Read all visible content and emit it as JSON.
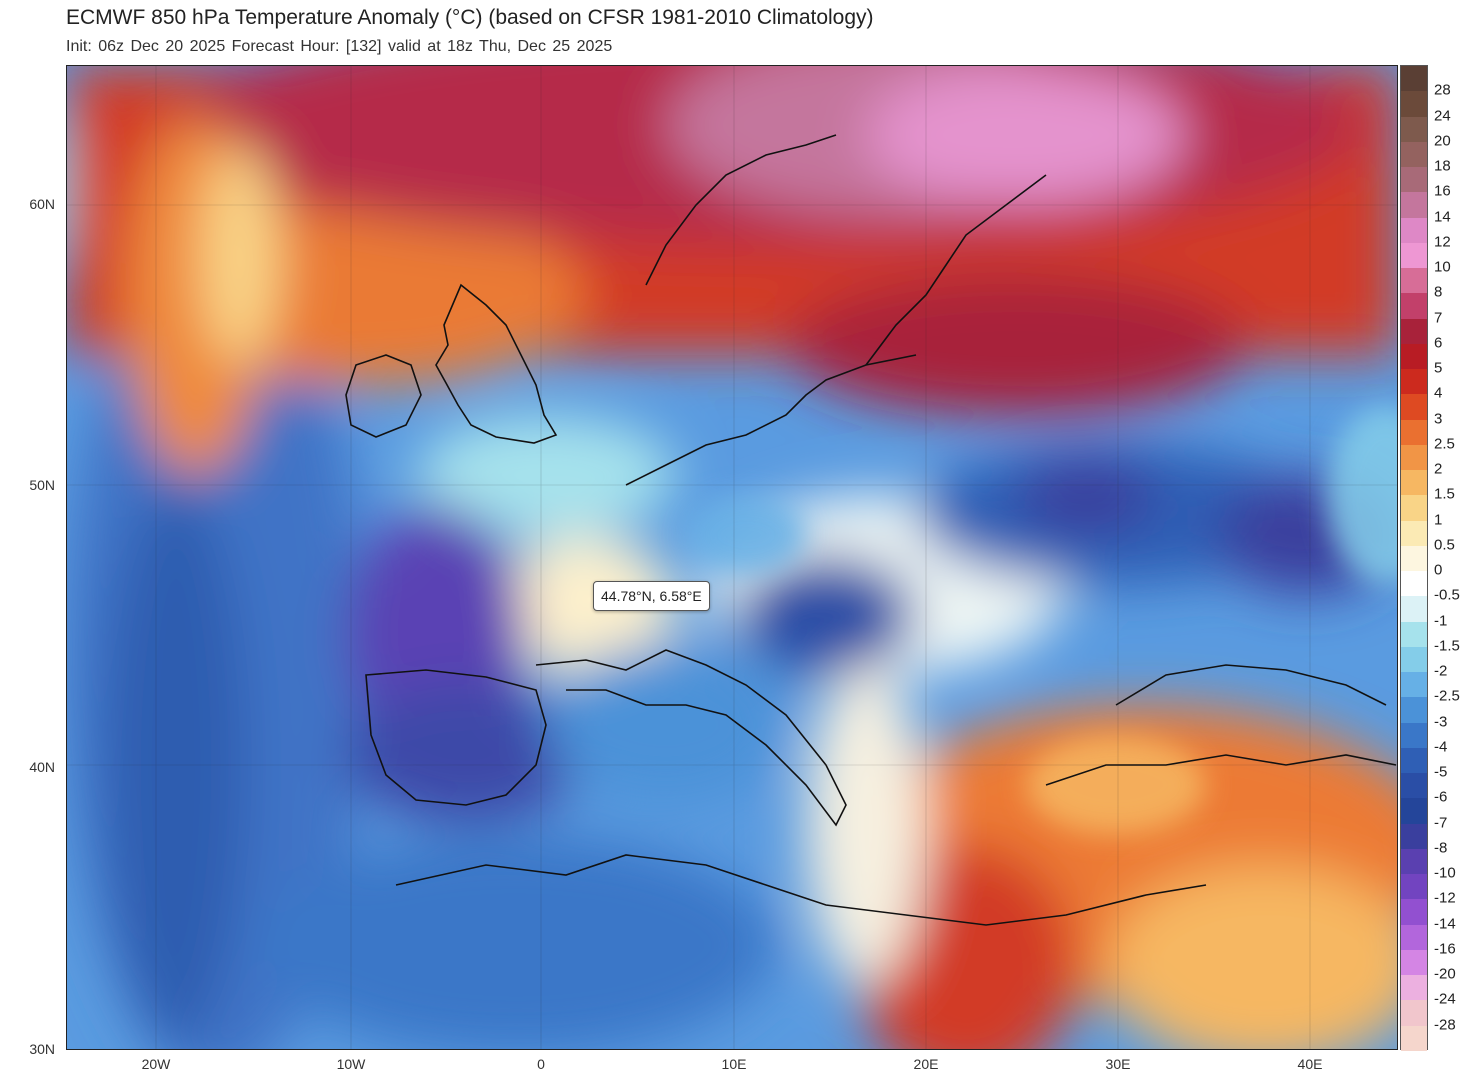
{
  "header": {
    "title": "ECMWF 850 hPa Temperature Anomaly (°C) (based on CFSR 1981-2010 Climatology)",
    "subtitle": "Init: 06z Dec 20 2025   Forecast Hour: [132]   valid at 18z Thu, Dec 25 2025"
  },
  "axes": {
    "lat_labels": [
      "60N",
      "50N",
      "40N",
      "30N"
    ],
    "lon_labels": [
      "20W",
      "10W",
      "0",
      "10E",
      "20E",
      "30E",
      "40E"
    ]
  },
  "tooltip": {
    "text": "44.78°N, 6.58°E"
  },
  "colorbar": {
    "labels": [
      "28",
      "24",
      "20",
      "18",
      "16",
      "14",
      "12",
      "10",
      "8",
      "7",
      "6",
      "5",
      "4",
      "3",
      "2.5",
      "2",
      "1.5",
      "1",
      "0.5",
      "0",
      "-0.5",
      "-1",
      "-1.5",
      "-2",
      "-2.5",
      "-3",
      "-4",
      "-5",
      "-6",
      "-7",
      "-8",
      "-10",
      "-12",
      "-14",
      "-16",
      "-20",
      "-24",
      "-28"
    ],
    "colors": [
      "#6b4a3a",
      "#7e5a4d",
      "#94625f",
      "#a86a78",
      "#c4769d",
      "#de88c6",
      "#ee97d3",
      "#d76d97",
      "#c2406a",
      "#a8223a",
      "#b81c24",
      "#cc2a1e",
      "#de4a22",
      "#ea7030",
      "#f19546",
      "#f6b762",
      "#f9d487",
      "#fbeab4",
      "#fdf6e0",
      "#ffffff",
      "#dcf2f6",
      "#a6e2ec",
      "#84cde9",
      "#66b0e6",
      "#4b92d8",
      "#3a77c8",
      "#2f5fb5",
      "#2a4ea6",
      "#24459a",
      "#3a3f9e",
      "#5a40b0",
      "#7244c0",
      "#9250d0",
      "#b266dc",
      "#d485e4",
      "#ecb0e0",
      "#f1c6cc",
      "#f5d6cc"
    ]
  }
}
